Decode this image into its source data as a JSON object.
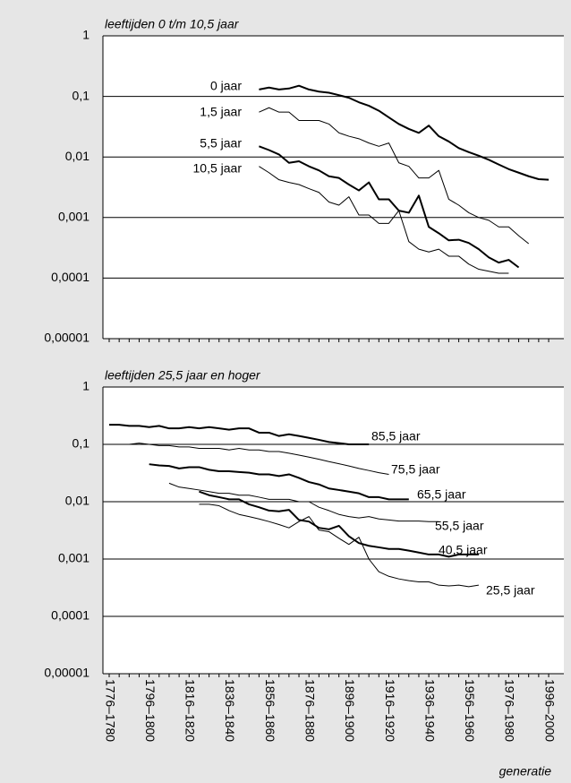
{
  "chart_data": [
    {
      "type": "line",
      "title": "leeftijden 0 t/m 10,5 jaar",
      "log_scale": true,
      "grid": true,
      "ylim": [
        1e-05,
        1
      ],
      "yticks": [
        {
          "value": 1e-05,
          "label": "0,00001"
        },
        {
          "value": 0.0001,
          "label": "0,0001"
        },
        {
          "value": 0.001,
          "label": "0,001"
        },
        {
          "value": 0.01,
          "label": "0,01"
        },
        {
          "value": 0.1,
          "label": "0,1"
        },
        1
      ],
      "categories": [
        null,
        null,
        null,
        null,
        null,
        null,
        null,
        null,
        null,
        null,
        null,
        null,
        null,
        null,
        null,
        null,
        null,
        null,
        null,
        null,
        null,
        null,
        null,
        null,
        null,
        null,
        null,
        null,
        null,
        null,
        null,
        null,
        null,
        null,
        null,
        null,
        null,
        null,
        null,
        null,
        null,
        null,
        null,
        null,
        null
      ],
      "series": [
        {
          "name": "0 jaar",
          "color": "#000000",
          "width": 2,
          "values": [
            null,
            null,
            null,
            null,
            null,
            null,
            null,
            null,
            null,
            null,
            null,
            null,
            null,
            null,
            null,
            0.13,
            0.14,
            0.13,
            0.135,
            0.15,
            0.13,
            0.12,
            0.115,
            0.105,
            0.095,
            0.08,
            0.07,
            0.058,
            0.045,
            0.035,
            0.029,
            0.025,
            0.033,
            0.022,
            0.018,
            0.014,
            0.012,
            0.0105,
            0.009,
            0.0075,
            0.0063,
            0.0055,
            0.0048,
            0.0043,
            0.0042
          ]
        },
        {
          "name": "1,5 jaar",
          "color": "#000000",
          "width": 1,
          "values": [
            null,
            null,
            null,
            null,
            null,
            null,
            null,
            null,
            null,
            null,
            null,
            null,
            null,
            null,
            null,
            0.055,
            0.065,
            0.055,
            0.055,
            0.04,
            0.04,
            0.04,
            0.035,
            0.025,
            0.022,
            0.02,
            0.017,
            0.015,
            0.017,
            0.008,
            0.007,
            0.0045,
            0.0045,
            0.006,
            0.002,
            0.0016,
            0.0012,
            0.001,
            0.0009,
            0.0007,
            0.0007,
            0.0005,
            0.00037,
            null,
            null
          ]
        },
        {
          "name": "5,5 jaar",
          "color": "#000000",
          "width": 2,
          "values": [
            null,
            null,
            null,
            null,
            null,
            null,
            null,
            null,
            null,
            null,
            null,
            null,
            null,
            null,
            null,
            0.015,
            0.013,
            0.011,
            0.008,
            0.0085,
            0.007,
            0.006,
            0.0048,
            0.0045,
            0.0035,
            0.0028,
            0.0038,
            0.002,
            0.002,
            0.0013,
            0.0012,
            0.0023,
            0.0007,
            0.00055,
            0.00042,
            0.00043,
            0.00038,
            0.0003,
            0.00022,
            0.00018,
            0.0002,
            0.00015,
            null,
            null,
            null
          ]
        },
        {
          "name": "10,5 jaar",
          "color": "#000000",
          "width": 1,
          "values": [
            null,
            null,
            null,
            null,
            null,
            null,
            null,
            null,
            null,
            null,
            null,
            null,
            null,
            null,
            null,
            0.007,
            0.0055,
            0.0042,
            0.0038,
            0.0035,
            0.003,
            0.0026,
            0.0018,
            0.0016,
            0.0022,
            0.0011,
            0.0011,
            0.0008,
            0.0008,
            0.0013,
            0.0004,
            0.0003,
            0.00027,
            0.0003,
            0.00023,
            0.00023,
            0.00017,
            0.00014,
            0.00013,
            0.00012,
            0.00012,
            null,
            null,
            null,
            null
          ]
        }
      ]
    },
    {
      "type": "line",
      "title": "leeftijden 25,5 jaar en hoger",
      "x_label": "generatie",
      "log_scale": true,
      "grid": true,
      "ylim": [
        1e-05,
        1
      ],
      "yticks": [
        {
          "value": 1e-05,
          "label": "0,00001"
        },
        {
          "value": 0.0001,
          "label": "0,0001"
        },
        {
          "value": 0.001,
          "label": "0,001"
        },
        {
          "value": 0.01,
          "label": "0,01"
        },
        {
          "value": 0.1,
          "label": "0,1"
        },
        1
      ],
      "categories": [
        "1776–1780",
        null,
        null,
        null,
        "1796–1800",
        null,
        null,
        null,
        "1816–1820",
        null,
        null,
        null,
        "1836–1840",
        null,
        null,
        null,
        "1856–1860",
        null,
        null,
        null,
        "1876–1880",
        null,
        null,
        null,
        "1896–1900",
        null,
        null,
        null,
        "1916–1920",
        null,
        null,
        null,
        "1936–1940",
        null,
        null,
        null,
        "1956–1960",
        null,
        null,
        null,
        "1976–1980",
        null,
        null,
        null,
        "1996–2000"
      ],
      "series": [
        {
          "name": "85,5 jaar",
          "color": "#000000",
          "width": 2,
          "values": [
            0.22,
            0.22,
            0.21,
            0.21,
            0.2,
            0.21,
            0.19,
            0.19,
            0.2,
            0.19,
            0.2,
            0.19,
            0.18,
            0.19,
            0.19,
            0.16,
            0.16,
            0.14,
            0.15,
            0.14,
            0.13,
            0.12,
            0.11,
            0.105,
            0.1,
            0.1,
            0.1,
            null,
            null,
            null,
            null,
            null,
            null,
            null,
            null,
            null,
            null,
            null,
            null,
            null,
            null,
            null,
            null,
            null,
            null
          ]
        },
        {
          "name": "75,5 jaar",
          "color": "#000000",
          "width": 1,
          "values": [
            null,
            null,
            0.1,
            0.105,
            0.1,
            0.095,
            0.095,
            0.09,
            0.09,
            0.085,
            0.085,
            0.085,
            0.08,
            0.085,
            0.08,
            0.08,
            0.075,
            0.075,
            0.07,
            0.065,
            0.06,
            0.055,
            0.05,
            0.046,
            0.042,
            0.038,
            0.035,
            0.032,
            0.03,
            null,
            null,
            null,
            null,
            null,
            null,
            null,
            null,
            null,
            null,
            null,
            null,
            null,
            null,
            null,
            null
          ]
        },
        {
          "name": "65,5 jaar",
          "color": "#000000",
          "width": 2,
          "values": [
            null,
            null,
            null,
            null,
            0.045,
            0.043,
            0.042,
            0.038,
            0.04,
            0.04,
            0.036,
            0.034,
            0.034,
            0.033,
            0.032,
            0.03,
            0.03,
            0.028,
            0.03,
            0.026,
            0.022,
            0.02,
            0.017,
            0.016,
            0.015,
            0.014,
            0.012,
            0.012,
            0.011,
            0.011,
            0.011,
            null,
            null,
            null,
            null,
            null,
            null,
            null,
            null,
            null,
            null,
            null,
            null,
            null,
            null
          ]
        },
        {
          "name": "55,5 jaar",
          "color": "#000000",
          "width": 1,
          "values": [
            null,
            null,
            null,
            null,
            null,
            null,
            0.021,
            0.018,
            0.017,
            0.016,
            0.015,
            0.014,
            0.014,
            0.013,
            0.013,
            0.012,
            0.011,
            0.011,
            0.011,
            0.01,
            0.01,
            0.008,
            0.007,
            0.006,
            0.0055,
            0.0052,
            0.0055,
            0.005,
            0.0048,
            0.0046,
            0.0046,
            0.0046,
            0.0045,
            0.0045,
            null,
            null,
            null,
            null,
            null,
            null,
            null,
            null,
            null,
            null,
            null
          ]
        },
        {
          "name": "40,5 jaar",
          "color": "#000000",
          "width": 2,
          "values": [
            null,
            null,
            null,
            null,
            null,
            null,
            null,
            null,
            null,
            0.015,
            0.013,
            0.012,
            0.011,
            0.011,
            0.009,
            0.008,
            0.007,
            0.0068,
            0.0072,
            0.0048,
            0.0045,
            0.0035,
            0.0033,
            0.0038,
            0.0025,
            0.0019,
            0.0017,
            0.0016,
            0.0015,
            0.0015,
            0.0014,
            0.0013,
            0.0012,
            0.0012,
            0.0011,
            0.0012,
            0.0012,
            0.0012,
            null,
            null,
            null,
            null,
            null,
            null,
            null
          ]
        },
        {
          "name": "25,5 jaar",
          "color": "#000000",
          "width": 1,
          "values": [
            null,
            null,
            null,
            null,
            null,
            null,
            null,
            null,
            null,
            0.009,
            0.009,
            0.0085,
            0.007,
            0.006,
            0.0055,
            0.005,
            0.0045,
            0.004,
            0.0035,
            0.0045,
            0.0055,
            0.0032,
            0.003,
            0.0023,
            0.0018,
            0.0024,
            0.001,
            0.0006,
            0.0005,
            0.00045,
            0.00042,
            0.0004,
            0.0004,
            0.00035,
            0.00034,
            0.00035,
            0.00033,
            0.00035,
            null,
            null,
            null,
            null,
            null,
            null,
            null
          ]
        }
      ]
    }
  ]
}
